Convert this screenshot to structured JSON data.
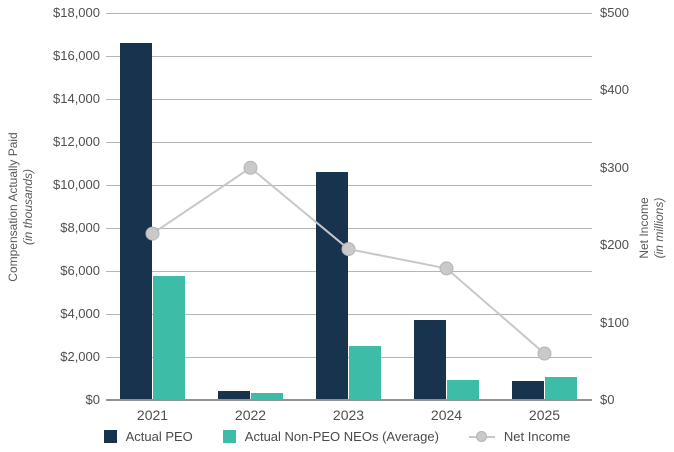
{
  "chart_data": {
    "type": "combo-bar-line",
    "title": "",
    "categories": [
      "2021",
      "2022",
      "2023",
      "2024",
      "2025"
    ],
    "bar_series": [
      {
        "name": "Actual PEO",
        "color": "#17334e",
        "axis": "left",
        "values": [
          16600,
          400,
          10600,
          3700,
          900
        ]
      },
      {
        "name": "Actual Non-PEO NEOs (Average)",
        "color": "#3dbda7",
        "axis": "left",
        "values": [
          5750,
          320,
          2500,
          950,
          1050
        ]
      }
    ],
    "line_series": {
      "name": "Net Income",
      "axis": "right",
      "line_color": "#c7c8ca",
      "marker_fill": "#c9c9c9",
      "marker_stroke": "#b5b5b5",
      "values": [
        215,
        300,
        195,
        170,
        60
      ]
    },
    "left_axis": {
      "title": "Compensation Actually Paid",
      "subtitle": "(in thousands)",
      "min": 0,
      "max": 18000,
      "step": 2000,
      "tick_labels": [
        "$0",
        "$2,000",
        "$4,000",
        "$6,000",
        "$8,000",
        "$10,000",
        "$12,000",
        "$14,000",
        "$16,000",
        "$18,000"
      ]
    },
    "right_axis": {
      "title": "Net Income",
      "subtitle": "(in millions)",
      "min": 0,
      "max": 500,
      "step": 100,
      "tick_labels": [
        "$0",
        "$100",
        "$200",
        "$300",
        "$400",
        "$500"
      ]
    },
    "grid": "horizontal",
    "legend_position": "bottom",
    "colors": {
      "gridline": "#b5b5b5",
      "axis_line": "#929292",
      "tick_text": "#4f4f4f",
      "axis_title_text": "#595959"
    }
  }
}
